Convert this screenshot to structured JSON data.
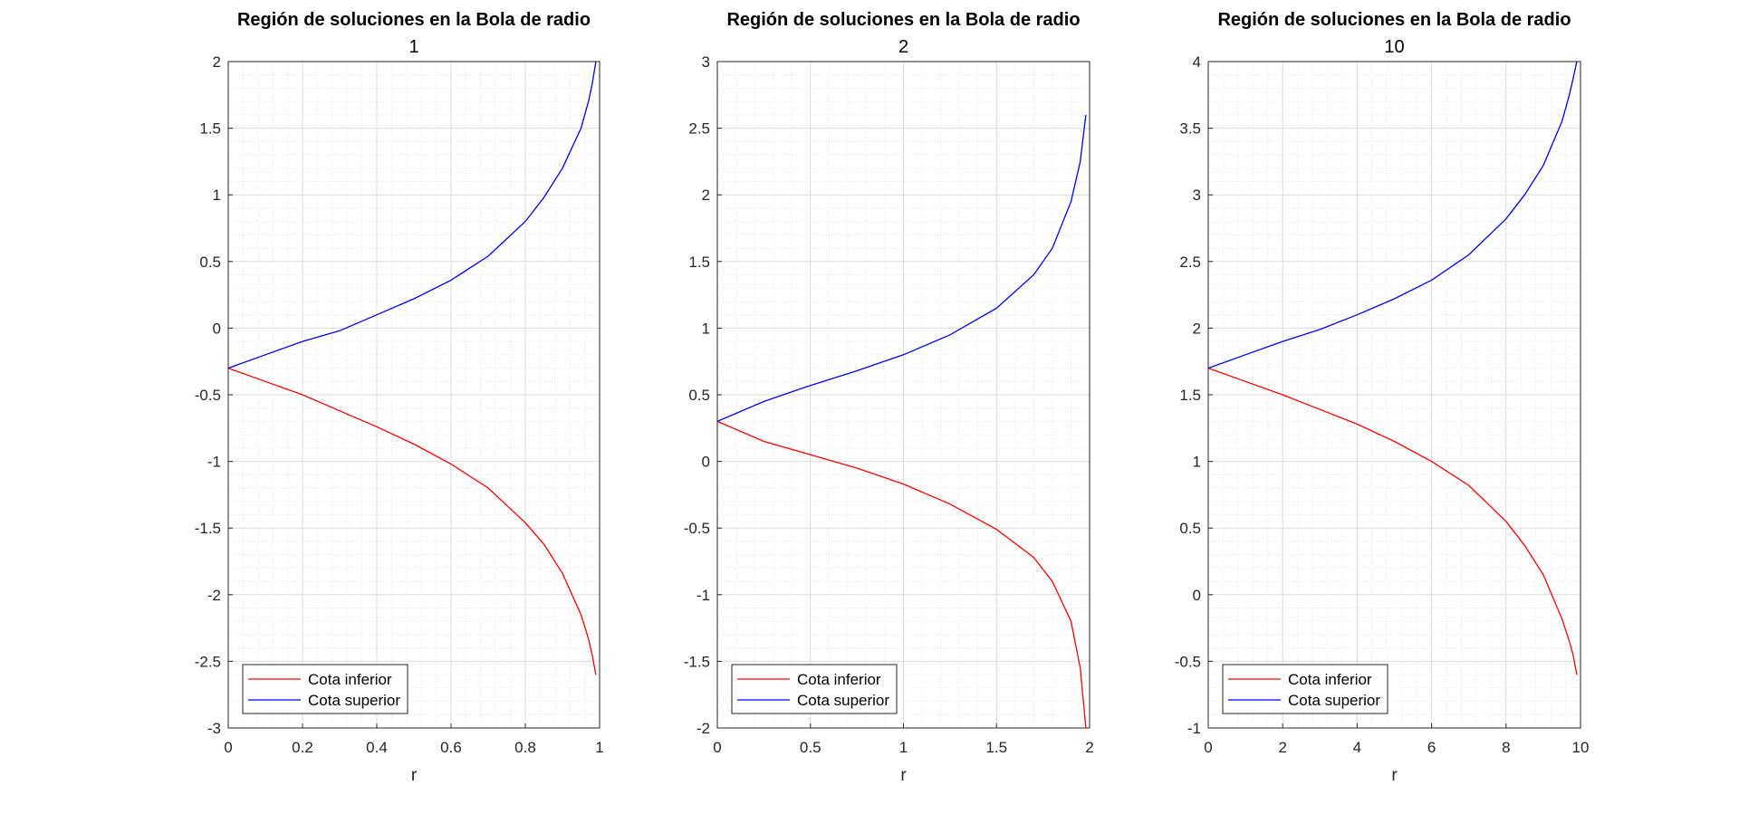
{
  "chart_data": [
    {
      "type": "line",
      "title": "Región de soluciones en la Bola de radio",
      "subtitle": "1",
      "xlabel": "r",
      "ylabel": "",
      "xlim": [
        0,
        1
      ],
      "ylim": [
        -3,
        2
      ],
      "xticks": [
        "0",
        "0.2",
        "0.4",
        "0.6",
        "0.8",
        "1"
      ],
      "yticks": [
        "-3",
        "-2.5",
        "-2",
        "-1.5",
        "-1",
        "-0.5",
        "0",
        "0.5",
        "1",
        "1.5",
        "2"
      ],
      "grid": true,
      "legend_position": "bottom-left",
      "series": [
        {
          "name": "Cota inferior",
          "color": "#ff0000",
          "x": [
            0,
            0.1,
            0.2,
            0.3,
            0.4,
            0.5,
            0.6,
            0.7,
            0.8,
            0.85,
            0.9,
            0.95,
            0.97,
            0.98,
            0.99
          ],
          "y": [
            -0.3,
            -0.4,
            -0.5,
            -0.62,
            -0.74,
            -0.87,
            -1.02,
            -1.2,
            -1.46,
            -1.62,
            -1.84,
            -2.15,
            -2.33,
            -2.45,
            -2.6
          ]
        },
        {
          "name": "Cota superior",
          "color": "#0000ff",
          "x": [
            0,
            0.1,
            0.2,
            0.3,
            0.4,
            0.5,
            0.6,
            0.7,
            0.8,
            0.85,
            0.9,
            0.95,
            0.97,
            0.98,
            0.99
          ],
          "y": [
            -0.3,
            -0.2,
            -0.1,
            -0.02,
            0.1,
            0.22,
            0.36,
            0.54,
            0.8,
            0.98,
            1.2,
            1.5,
            1.7,
            1.83,
            2.0
          ]
        }
      ]
    },
    {
      "type": "line",
      "title": "Región de soluciones en la Bola de radio",
      "subtitle": "2",
      "xlabel": "r",
      "ylabel": "",
      "xlim": [
        0,
        2
      ],
      "ylim": [
        -2,
        3
      ],
      "xticks": [
        "0",
        "0.5",
        "1",
        "1.5",
        "2"
      ],
      "yticks": [
        "-2",
        "-1.5",
        "-1",
        "-0.5",
        "0",
        "0.5",
        "1",
        "1.5",
        "2",
        "2.5",
        "3"
      ],
      "grid": true,
      "legend_position": "bottom-left",
      "series": [
        {
          "name": "Cota inferior",
          "color": "#ff0000",
          "x": [
            0,
            0.25,
            0.5,
            0.75,
            1.0,
            1.25,
            1.5,
            1.7,
            1.8,
            1.9,
            1.95,
            1.98
          ],
          "y": [
            0.3,
            0.15,
            0.05,
            -0.05,
            -0.17,
            -0.32,
            -0.51,
            -0.72,
            -0.9,
            -1.2,
            -1.55,
            -2.0
          ]
        },
        {
          "name": "Cota superior",
          "color": "#0000ff",
          "x": [
            0,
            0.25,
            0.5,
            0.75,
            1.0,
            1.25,
            1.5,
            1.7,
            1.8,
            1.9,
            1.95,
            1.98
          ],
          "y": [
            0.3,
            0.45,
            0.57,
            0.68,
            0.8,
            0.95,
            1.15,
            1.4,
            1.6,
            1.95,
            2.25,
            2.6
          ]
        }
      ]
    },
    {
      "type": "line",
      "title": "Región de soluciones en la Bola de radio",
      "subtitle": "10",
      "xlabel": "r",
      "ylabel": "",
      "xlim": [
        0,
        10
      ],
      "ylim": [
        -1,
        4
      ],
      "xticks": [
        "0",
        "2",
        "4",
        "6",
        "8",
        "10"
      ],
      "yticks": [
        "-1",
        "-0.5",
        "0",
        "0.5",
        "1",
        "1.5",
        "2",
        "2.5",
        "3",
        "3.5",
        "4"
      ],
      "grid": true,
      "legend_position": "bottom-left",
      "series": [
        {
          "name": "Cota inferior",
          "color": "#ff0000",
          "x": [
            0,
            1,
            2,
            3,
            4,
            5,
            6,
            7,
            8,
            8.5,
            9,
            9.5,
            9.7,
            9.8,
            9.9
          ],
          "y": [
            1.7,
            1.6,
            1.5,
            1.39,
            1.28,
            1.15,
            1.0,
            0.82,
            0.55,
            0.37,
            0.15,
            -0.18,
            -0.35,
            -0.45,
            -0.6
          ]
        },
        {
          "name": "Cota superior",
          "color": "#0000ff",
          "x": [
            0,
            1,
            2,
            3,
            4,
            5,
            6,
            7,
            8,
            8.5,
            9,
            9.5,
            9.7,
            9.8,
            9.9
          ],
          "y": [
            1.7,
            1.8,
            1.9,
            1.99,
            2.1,
            2.22,
            2.36,
            2.55,
            2.82,
            3.0,
            3.22,
            3.55,
            3.75,
            3.87,
            4.0
          ]
        }
      ]
    }
  ]
}
